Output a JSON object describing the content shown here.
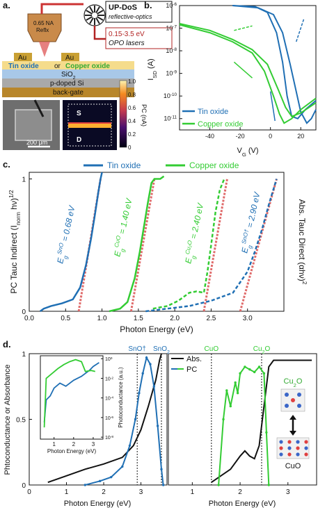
{
  "panel_labels": {
    "a": "a.",
    "b": "b.",
    "c": "c.",
    "d": "d."
  },
  "schematic": {
    "instrument_title": "UP-DoS",
    "instrument_subtitle": "reflective-optics",
    "objective_label_1": "0.65 NA",
    "objective_label_2": "Reflx",
    "energy_range": "0.15-3.5 eV",
    "laser_label": "OPO lasers",
    "electrode_left": "Au",
    "electrode_right": "Au",
    "film_tin": "Tin oxide",
    "film_or": "or",
    "film_copper": "Copper oxide",
    "layer_sio2": "SiO",
    "layer_sio2_sub": "2",
    "layer_si": "p-doped Si",
    "layer_gate": "back-gate",
    "scalebar": "200 μm",
    "map_source": "S",
    "map_drain": "D",
    "colorbar_label": "PC (nA)",
    "colorbar_ticks": [
      "1.0",
      "0.8",
      "0.6",
      "0.4",
      "0.2",
      "0"
    ],
    "colors": {
      "gold": "#c9a034",
      "sio2": "#a8c8e8",
      "si": "#a9a9a9",
      "gate": "#b8862a",
      "film": "#f5dc8c",
      "laser": "#b22222"
    }
  },
  "chart_data": [
    {
      "id": "b",
      "type": "line",
      "xlabel": "V",
      "xlabel_sub": "G",
      "xunit": "(V)",
      "ylabel": "I",
      "ylabel_sub": "SD",
      "yunit": "(A)",
      "xlim": [
        -60,
        30
      ],
      "ylim_exp": [
        -11.5,
        -6
      ],
      "log_y": true,
      "xticks": [
        "-40",
        "-20",
        "0",
        "20"
      ],
      "xtick_values": [
        -40,
        -20,
        0,
        20
      ],
      "yticks": [
        "10",
        "10",
        "10",
        "10",
        "10",
        "10"
      ],
      "ytick_exp": [
        "-11",
        "-10",
        "-9",
        "-8",
        "-7",
        "-6"
      ],
      "ytick_values": [
        -11,
        -10,
        -9,
        -8,
        -7,
        -6
      ],
      "legend": [
        "Tin oxide",
        "Copper oxide"
      ],
      "series": [
        {
          "name": "Tin oxide",
          "color": "#1f6fb4",
          "fwd": [
            [
              -25,
              -6
            ],
            [
              -10,
              -6.05
            ],
            [
              -2,
              -6.3
            ],
            [
              4,
              -7.2
            ],
            [
              8,
              -8.5
            ],
            [
              11,
              -10
            ],
            [
              14,
              -10.9
            ],
            [
              18,
              -11.0
            ],
            [
              23,
              -10.6
            ],
            [
              30,
              -10.2
            ]
          ],
          "rev": [
            [
              -25,
              -6
            ],
            [
              -8,
              -6.1
            ],
            [
              2,
              -6.4
            ],
            [
              8,
              -7.2
            ],
            [
              13,
              -8.6
            ],
            [
              17,
              -9.8
            ],
            [
              20,
              -10.7
            ],
            [
              24,
              -11.2
            ],
            [
              27,
              -11
            ],
            [
              30,
              -10.6
            ]
          ]
        },
        {
          "name": "Copper oxide",
          "color": "#33cc33",
          "fwd": [
            [
              -60,
              -6.85
            ],
            [
              -40,
              -7.2
            ],
            [
              -25,
              -7.6
            ],
            [
              -12,
              -8.1
            ],
            [
              -4,
              -8.9
            ],
            [
              2,
              -10.0
            ],
            [
              6,
              -10.8
            ],
            [
              9,
              -11.2
            ],
            [
              14,
              -11.0
            ],
            [
              20,
              -10.6
            ],
            [
              30,
              -10.1
            ]
          ],
          "rev": [
            [
              -60,
              -6.8
            ],
            [
              -40,
              -7.1
            ],
            [
              -25,
              -7.5
            ],
            [
              -12,
              -7.95
            ],
            [
              -2,
              -8.6
            ],
            [
              5,
              -9.7
            ],
            [
              10,
              -10.5
            ],
            [
              14,
              -10.9
            ],
            [
              20,
              -10.75
            ],
            [
              30,
              -10.3
            ]
          ]
        }
      ]
    },
    {
      "id": "c",
      "type": "line",
      "xlabel": "Photon Energy (eV)",
      "ylabel_left": "PC Tauc Indirect (I",
      "ylabel_left_sub": "norm",
      "ylabel_left_end": " hν)",
      "ylabel_left_sup": "1/2",
      "ylabel_right": "Abs. Tauc Direct (αhν)",
      "ylabel_right_sup": "2",
      "xlim": [
        0,
        3.5
      ],
      "ylim": [
        0,
        1.05
      ],
      "xticks": [
        "0.0",
        "0.5",
        "1.0",
        "1.5",
        "2.0",
        "2.5",
        "3.0"
      ],
      "xtick_values": [
        0,
        0.5,
        1.0,
        1.5,
        2.0,
        2.5,
        3.0
      ],
      "yticks": [
        "0",
        "1"
      ],
      "ytick_values": [
        0,
        1
      ],
      "legend": [
        "Tin oxide",
        "Copper oxide"
      ],
      "annotations": [
        {
          "base": "E",
          "sub": "g",
          "sup": "SnO",
          "value": " = 0.68 eV",
          "color": "#1f6fb4"
        },
        {
          "base": "E",
          "sub": "g",
          "sup": "CuO",
          "value": " = 1.40 eV",
          "color": "#33cc33"
        },
        {
          "base": "E",
          "sub": "g",
          "sup": "Cu₂O",
          "value": " = 2.40 eV",
          "color": "#33cc33"
        },
        {
          "base": "E",
          "sub": "g",
          "sup": "SnO†",
          "value": " = 2.90 eV",
          "color": "#1f6fb4"
        }
      ],
      "fits": [
        {
          "x": [
            0.68,
            0.98
          ],
          "y": [
            0,
            1.0
          ]
        },
        {
          "x": [
            1.4,
            1.72
          ],
          "y": [
            0,
            1.0
          ]
        },
        {
          "x": [
            2.4,
            2.72
          ],
          "y": [
            0,
            1.0
          ]
        },
        {
          "x": [
            2.9,
            3.4
          ],
          "y": [
            0,
            1.0
          ]
        }
      ],
      "series": [
        {
          "name": "Tin oxide PC",
          "color": "#1f6fb4",
          "dash": false,
          "points": [
            [
              0.15,
              0.0
            ],
            [
              0.2,
              0.02
            ],
            [
              0.3,
              0.04
            ],
            [
              0.45,
              0.06
            ],
            [
              0.6,
              0.09
            ],
            [
              0.7,
              0.18
            ],
            [
              0.78,
              0.35
            ],
            [
              0.85,
              0.55
            ],
            [
              0.9,
              0.72
            ],
            [
              0.95,
              0.9
            ],
            [
              0.98,
              1.0
            ],
            [
              1.0,
              1.05
            ]
          ]
        },
        {
          "name": "Copper oxide PC",
          "color": "#33cc33",
          "dash": false,
          "points": [
            [
              1.1,
              0.0
            ],
            [
              1.25,
              0.02
            ],
            [
              1.35,
              0.07
            ],
            [
              1.45,
              0.25
            ],
            [
              1.52,
              0.45
            ],
            [
              1.58,
              0.65
            ],
            [
              1.63,
              0.82
            ],
            [
              1.68,
              0.97
            ],
            [
              1.72,
              1.0
            ],
            [
              1.8,
              1.0
            ],
            [
              1.85,
              1.02
            ]
          ]
        },
        {
          "name": "Copper oxide Abs",
          "color": "#33cc33",
          "dash": true,
          "points": [
            [
              1.7,
              0.02
            ],
            [
              1.9,
              0.04
            ],
            [
              2.05,
              0.08
            ],
            [
              2.2,
              0.14
            ],
            [
              2.3,
              0.15
            ],
            [
              2.4,
              0.14
            ],
            [
              2.45,
              0.3
            ],
            [
              2.5,
              0.5
            ],
            [
              2.56,
              0.75
            ],
            [
              2.62,
              0.92
            ],
            [
              2.68,
              1.0
            ]
          ]
        },
        {
          "name": "Tin oxide Abs",
          "color": "#1f6fb4",
          "dash": true,
          "points": [
            [
              1.6,
              0.0
            ],
            [
              1.9,
              0.02
            ],
            [
              2.2,
              0.04
            ],
            [
              2.5,
              0.08
            ],
            [
              2.8,
              0.14
            ],
            [
              3.0,
              0.3
            ],
            [
              3.1,
              0.45
            ],
            [
              3.2,
              0.62
            ],
            [
              3.3,
              0.82
            ],
            [
              3.4,
              1.0
            ]
          ]
        }
      ]
    },
    {
      "id": "d",
      "type": "line",
      "xlabel": "Photon Energy (eV)",
      "ylabel": "Phtoconductance or Absorbance",
      "ylim": [
        0,
        1.0
      ],
      "yticks": [
        "0",
        "0.5",
        "1"
      ],
      "ytick_values": [
        0,
        0.5,
        1
      ],
      "legend": [
        "Abs.",
        "PC"
      ],
      "markers": [
        {
          "panel": "left",
          "x": 2.9,
          "label": "SnO†",
          "color": "#1f6fb4"
        },
        {
          "panel": "left",
          "x": 3.55,
          "label": "SnO",
          "label_sub": "2",
          "color": "#1f6fb4"
        },
        {
          "panel": "right",
          "x": 1.4,
          "label": "CuO",
          "color": "#33cc33"
        },
        {
          "panel": "right",
          "x": 2.45,
          "label": "Cu",
          "label_sub": "2",
          "label_end": "O",
          "color": "#33cc33"
        }
      ],
      "left": {
        "xlim": [
          0,
          3.7
        ],
        "xticks": [
          "0",
          "1",
          "2",
          "3"
        ],
        "xtick_values": [
          0,
          1,
          2,
          3
        ],
        "abs": [
          [
            0.5,
            0.02
          ],
          [
            1.0,
            0.07
          ],
          [
            1.5,
            0.12
          ],
          [
            2.0,
            0.16
          ],
          [
            2.5,
            0.21
          ],
          [
            2.8,
            0.3
          ],
          [
            3.0,
            0.42
          ],
          [
            3.2,
            0.6
          ],
          [
            3.4,
            0.8
          ],
          [
            3.5,
            0.95
          ],
          [
            3.55,
            1.0
          ]
        ],
        "pc": [
          [
            1.5,
            0.0
          ],
          [
            1.9,
            0.03
          ],
          [
            2.2,
            0.06
          ],
          [
            2.5,
            0.14
          ],
          [
            2.7,
            0.3
          ],
          [
            2.85,
            0.5
          ],
          [
            2.95,
            0.7
          ],
          [
            3.05,
            0.85
          ],
          [
            3.15,
            0.97
          ],
          [
            3.25,
            0.92
          ],
          [
            3.35,
            0.75
          ],
          [
            3.45,
            0.45
          ],
          [
            3.55,
            0.12
          ],
          [
            3.6,
            0.0
          ]
        ]
      },
      "right": {
        "xlim": [
          0.5,
          3.6
        ],
        "xticks": [
          "1",
          "2",
          "3"
        ],
        "xtick_values": [
          1,
          2,
          3
        ],
        "abs": [
          [
            1.4,
            0.02
          ],
          [
            1.8,
            0.12
          ],
          [
            2.0,
            0.22
          ],
          [
            2.1,
            0.26
          ],
          [
            2.2,
            0.22
          ],
          [
            2.3,
            0.2
          ],
          [
            2.4,
            0.3
          ],
          [
            2.5,
            0.6
          ],
          [
            2.6,
            0.9
          ],
          [
            2.7,
            0.95
          ],
          [
            3.0,
            0.95
          ],
          [
            3.5,
            0.95
          ]
        ],
        "pc": [
          [
            1.55,
            0.0
          ],
          [
            1.65,
            0.5
          ],
          [
            1.72,
            0.72
          ],
          [
            1.8,
            0.6
          ],
          [
            1.9,
            0.78
          ],
          [
            1.95,
            0.7
          ],
          [
            2.0,
            0.85
          ],
          [
            2.1,
            0.9
          ],
          [
            2.2,
            0.88
          ],
          [
            2.3,
            0.86
          ],
          [
            2.4,
            0.9
          ],
          [
            2.5,
            0.85
          ],
          [
            2.55,
            0.4
          ],
          [
            2.6,
            0.0
          ]
        ]
      },
      "inset": {
        "xlabel": "Photon Energy (eV)",
        "ylabel": "Photoconductance (a.u.)",
        "xlim": [
          0.3,
          3.5
        ],
        "xticks": [
          "1",
          "2",
          "3"
        ],
        "xtick_values": [
          1,
          2,
          3
        ],
        "yticks_base": "10",
        "yticks_exp": [
          "0",
          "-2",
          "-4",
          "-6",
          "-8"
        ],
        "ytick_values": [
          0,
          -2,
          -4,
          -6,
          -8
        ],
        "tin": [
          [
            0.5,
            -6.5
          ],
          [
            0.6,
            -4.2
          ],
          [
            0.8,
            -3.8
          ],
          [
            1.0,
            -3.0
          ],
          [
            1.3,
            -2.5
          ],
          [
            1.6,
            -2.8
          ],
          [
            2.0,
            -2.2
          ],
          [
            2.4,
            -1.8
          ],
          [
            2.8,
            -1.2
          ],
          [
            3.0,
            -0.8
          ],
          [
            3.3,
            -0.4
          ]
        ],
        "cu": [
          [
            0.5,
            -7.0
          ],
          [
            0.6,
            -2.0
          ],
          [
            0.9,
            -1.5
          ],
          [
            1.2,
            -1.0
          ],
          [
            1.5,
            -0.6
          ],
          [
            1.8,
            -0.3
          ],
          [
            2.1,
            -0.1
          ],
          [
            2.4,
            -0.3
          ],
          [
            2.6,
            -1.3
          ],
          [
            2.9,
            -1.2
          ],
          [
            3.1,
            -1.3
          ]
        ]
      },
      "crystal": {
        "top": "Cu",
        "top_sub": "2",
        "top_end": "O",
        "bottom": "CuO"
      }
    }
  ]
}
